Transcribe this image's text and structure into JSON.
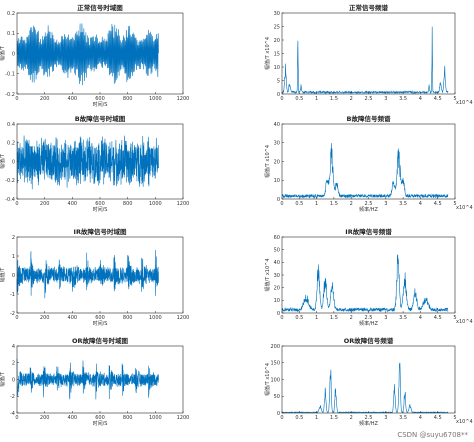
{
  "figure": {
    "watermark": "CSDN @suyu6708**"
  },
  "chart_data": [
    {
      "type": "line",
      "title": "正常信号时域图",
      "xlabel": "时间/S",
      "ylabel": "幅值/T",
      "xlim": [
        0,
        1200
      ],
      "ylim": [
        -0.2,
        0.2
      ],
      "xticks": [
        0,
        200,
        400,
        600,
        800,
        1000,
        1200
      ],
      "yticks": [
        -0.2,
        -0.1,
        0,
        0.1,
        0.2
      ],
      "ytick_labels": [
        "-0.2",
        "-0.1",
        "0",
        "0.1",
        "0.2"
      ],
      "color": "#0072bd",
      "series": [
        {
          "kind": "time",
          "n": 1024,
          "amp": 0.17,
          "noise": 0.25,
          "env": "smooth"
        }
      ]
    },
    {
      "type": "line",
      "title": "正常信号频谱",
      "xlabel": "",
      "ylabel": "幅值/T x10^4",
      "xlim": [
        0,
        5
      ],
      "ylim": [
        0,
        30
      ],
      "xticks": [
        0,
        0.5,
        1,
        1.5,
        2,
        2.5,
        3,
        3.5,
        4,
        4.5,
        5
      ],
      "yticks": [
        0,
        5,
        10,
        15,
        20,
        25,
        30
      ],
      "ytick_labels": [
        "0",
        "5",
        "10",
        "15",
        "20",
        "25",
        "30"
      ],
      "xscale_label": "x10^4",
      "color": "#0072bd",
      "series": [
        {
          "kind": "spectrum",
          "x_end": 4.8,
          "base": 1.0,
          "peaks": [
            [
              0.1,
              11,
              0.03
            ],
            [
              0.22,
              4,
              0.03
            ],
            [
              0.46,
              25,
              0.012
            ],
            [
              0.55,
              3,
              0.02
            ],
            [
              4.25,
              3,
              0.02
            ],
            [
              4.34,
              25,
              0.012
            ],
            [
              4.58,
              4,
              0.03
            ],
            [
              4.7,
              11,
              0.03
            ]
          ]
        }
      ]
    },
    {
      "type": "line",
      "title": "B故障信号时域图",
      "xlabel": "时间/S",
      "ylabel": "幅值/T",
      "xlim": [
        0,
        1200
      ],
      "ylim": [
        -0.4,
        0.4
      ],
      "xticks": [
        0,
        200,
        400,
        600,
        800,
        1000,
        1200
      ],
      "yticks": [
        -0.4,
        -0.2,
        0,
        0.2,
        0.4
      ],
      "ytick_labels": [
        "-0.4",
        "-0.2",
        "0",
        "0.2",
        "0.4"
      ],
      "color": "#0072bd",
      "series": [
        {
          "kind": "time",
          "n": 1024,
          "amp": 0.3,
          "noise": 0.9,
          "env": "flat"
        }
      ]
    },
    {
      "type": "line",
      "title": "B故障信号频谱",
      "xlabel": "频率/HZ",
      "ylabel": "幅值/T x10^4",
      "xlim": [
        0,
        5
      ],
      "ylim": [
        0,
        40
      ],
      "xticks": [
        0,
        0.5,
        1,
        1.5,
        2,
        2.5,
        3,
        3.5,
        4,
        4.5,
        5
      ],
      "yticks": [
        0,
        10,
        20,
        30,
        40
      ],
      "ytick_labels": [
        "0",
        "10",
        "20",
        "30",
        "40"
      ],
      "xscale_label": "x10^4",
      "color": "#0072bd",
      "series": [
        {
          "kind": "spectrum",
          "x_end": 4.8,
          "base": 2.5,
          "peaks": [
            [
              1.43,
              28,
              0.06
            ],
            [
              1.3,
              10,
              0.05
            ],
            [
              1.58,
              9,
              0.05
            ],
            [
              3.37,
              28,
              0.06
            ],
            [
              3.5,
              10,
              0.05
            ],
            [
              3.22,
              9,
              0.05
            ]
          ]
        }
      ]
    },
    {
      "type": "line",
      "title": "IR故障信号时域图",
      "xlabel": "时间/S",
      "ylabel": "幅值/T",
      "xlim": [
        0,
        1200
      ],
      "ylim": [
        -2,
        2
      ],
      "xticks": [
        0,
        200,
        400,
        600,
        800,
        1000,
        1200
      ],
      "yticks": [
        -2,
        -1,
        0,
        1,
        2
      ],
      "ytick_labels": [
        "-2",
        "-1",
        "0",
        "1",
        "2"
      ],
      "color": "#0072bd",
      "series": [
        {
          "kind": "time",
          "n": 1024,
          "amp": 1.3,
          "noise": 0.9,
          "env": "impulse",
          "period": 100
        }
      ]
    },
    {
      "type": "line",
      "title": "IR故障信号频谱",
      "xlabel": "频率/HZ",
      "ylabel": "幅值/T x10^4",
      "xlim": [
        0,
        5
      ],
      "ylim": [
        0,
        60
      ],
      "xticks": [
        0,
        0.5,
        1,
        1.5,
        2,
        2.5,
        3,
        3.5,
        4,
        4.5,
        5
      ],
      "yticks": [
        0,
        10,
        20,
        30,
        40,
        50,
        60
      ],
      "ytick_labels": [
        "0",
        "10",
        "20",
        "30",
        "40",
        "50",
        "60"
      ],
      "xscale_label": "x10^4",
      "color": "#0072bd",
      "series": [
        {
          "kind": "spectrum",
          "x_end": 4.8,
          "base": 4,
          "peaks": [
            [
              1.05,
              40,
              0.05
            ],
            [
              1.25,
              28,
              0.06
            ],
            [
              1.45,
              22,
              0.06
            ],
            [
              0.7,
              12,
              0.1
            ],
            [
              3.35,
              48,
              0.05
            ],
            [
              3.55,
              30,
              0.06
            ],
            [
              3.85,
              18,
              0.06
            ],
            [
              4.15,
              10,
              0.1
            ]
          ]
        }
      ]
    },
    {
      "type": "line",
      "title": "OR故障信号时域图",
      "xlabel": "时间/S",
      "ylabel": "幅值/T",
      "xlim": [
        0,
        1200
      ],
      "ylim": [
        -4,
        4
      ],
      "xticks": [
        0,
        200,
        400,
        600,
        800,
        1000,
        1200
      ],
      "yticks": [
        -4,
        -2,
        0,
        2,
        4
      ],
      "ytick_labels": [
        "-4",
        "-2",
        "0",
        "2",
        "4"
      ],
      "color": "#0072bd",
      "series": [
        {
          "kind": "time",
          "n": 1024,
          "amp": 2.4,
          "noise": 0.9,
          "env": "impulse",
          "period": 95
        }
      ]
    },
    {
      "type": "line",
      "title": "OR故障信号频谱",
      "xlabel": "频率/HZ",
      "ylabel": "幅值/T x10^4",
      "xlim": [
        0,
        5
      ],
      "ylim": [
        0,
        200
      ],
      "xticks": [
        0,
        0.5,
        1,
        1.5,
        2,
        2.5,
        3,
        3.5,
        4,
        4.5,
        5
      ],
      "yticks": [
        0,
        50,
        100,
        150,
        200
      ],
      "ytick_labels": [
        "0",
        "50",
        "100",
        "150",
        "200"
      ],
      "xscale_label": "x10^4",
      "color": "#0072bd",
      "series": [
        {
          "kind": "spectrum",
          "x_end": 4.8,
          "base": 3,
          "peaks": [
            [
              1.4,
              155,
              0.03
            ],
            [
              1.25,
              80,
              0.03
            ],
            [
              1.55,
              85,
              0.03
            ],
            [
              1.1,
              25,
              0.04
            ],
            [
              3.4,
              160,
              0.03
            ],
            [
              3.55,
              80,
              0.03
            ],
            [
              3.25,
              85,
              0.03
            ],
            [
              3.7,
              25,
              0.04
            ]
          ]
        }
      ]
    }
  ]
}
